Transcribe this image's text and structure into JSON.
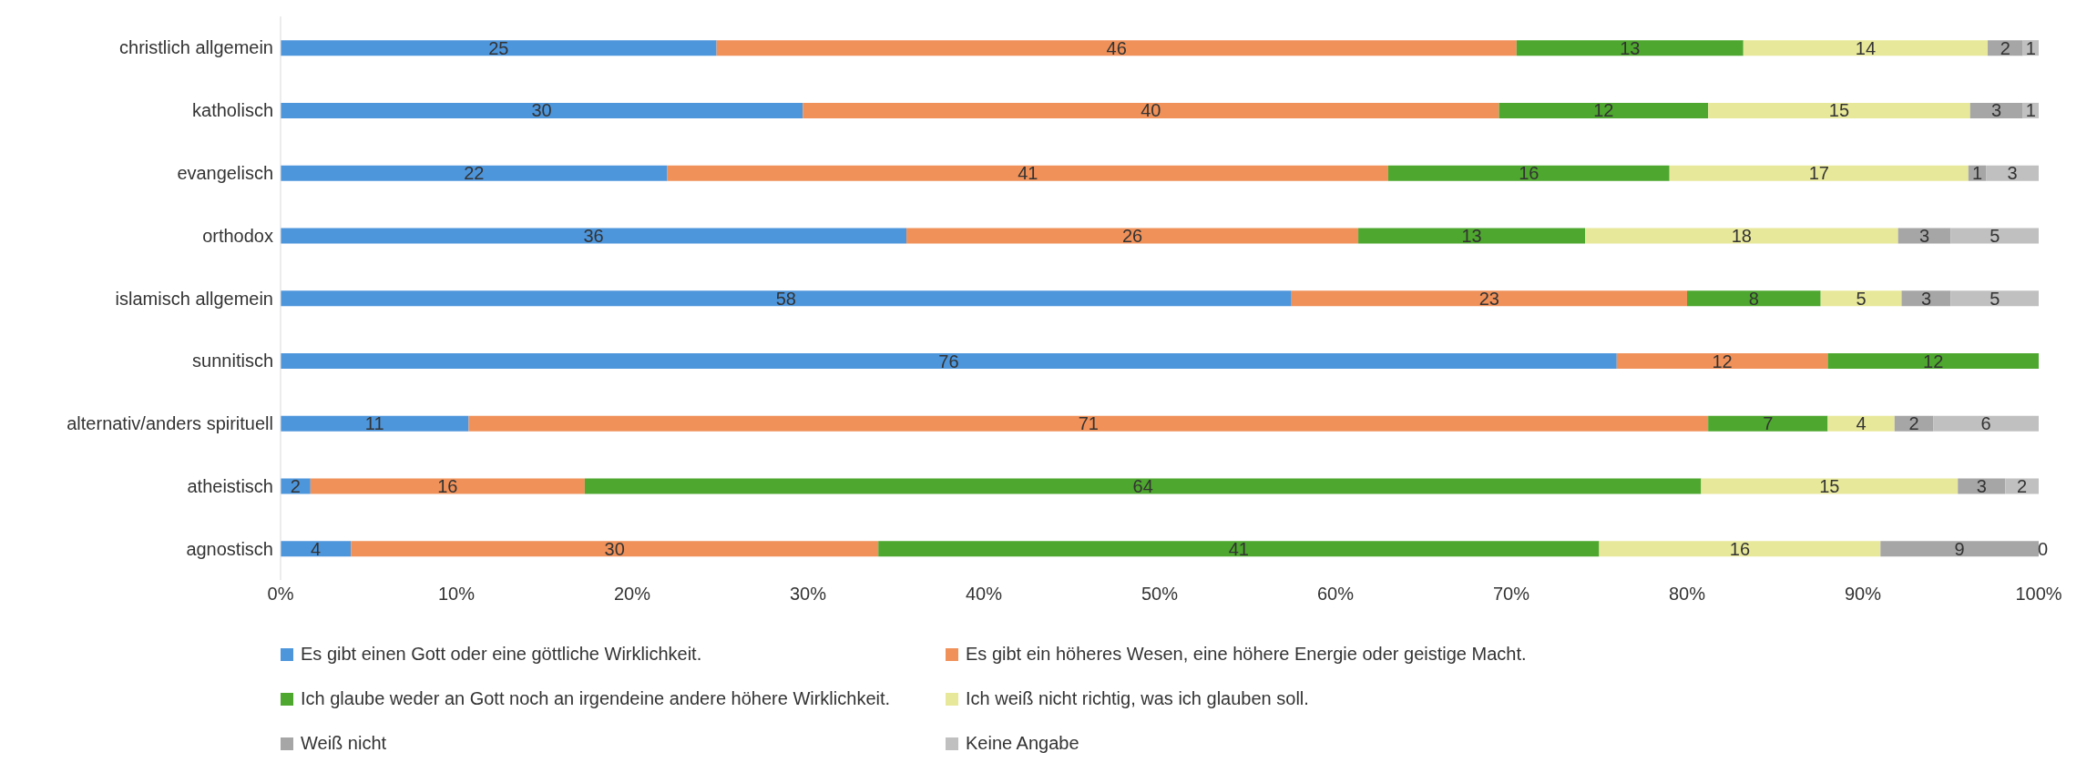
{
  "chart_data": {
    "type": "bar",
    "orientation": "horizontal",
    "stacked": true,
    "categories": [
      "christlich allgemein",
      "katholisch",
      "evangelisch",
      "orthodox",
      "islamisch allgemein",
      "sunnitisch",
      "alternativ/anders spirituell",
      "atheistisch",
      "agnostisch"
    ],
    "series": [
      {
        "name": "Es gibt einen Gott oder eine göttliche Wirklichkeit.",
        "color": "#4e96dc",
        "values": [
          24.8,
          29.7,
          22,
          35.6,
          57.5,
          76,
          10.7,
          1.7,
          4
        ],
        "value_labels": [
          "25",
          "30",
          "22",
          "36",
          "58",
          "76",
          "11",
          "2",
          "4"
        ]
      },
      {
        "name": "Es gibt ein höheres Wesen, eine höhere Energie oder geistige Macht.",
        "color": "#f0915a",
        "values": [
          45.5,
          39.6,
          41,
          25.7,
          22.5,
          12,
          70.5,
          15.6,
          30
        ],
        "value_labels": [
          "46",
          "40",
          "41",
          "26",
          "23",
          "12",
          "71",
          "16",
          "30"
        ]
      },
      {
        "name": "Ich glaube weder an Gott noch an irgendeine andere höhere Wirklichkeit.",
        "color": "#4ea72e",
        "values": [
          12.9,
          11.9,
          16,
          12.9,
          7.6,
          12,
          6.8,
          63.5,
          41
        ],
        "value_labels": [
          "13",
          "12",
          "16",
          "13",
          "8",
          "12",
          "7",
          "64",
          "41"
        ]
      },
      {
        "name": "Ich weiß nicht richtig, was ich glauben soll.",
        "color": "#e8e89a",
        "values": [
          13.9,
          14.9,
          17,
          17.8,
          4.6,
          null,
          3.8,
          14.6,
          16
        ],
        "value_labels": [
          "14",
          "15",
          "17",
          "18",
          "5",
          null,
          "4",
          "15",
          "16"
        ]
      },
      {
        "name": "Weiß nicht",
        "color": "#a6a6a6",
        "values": [
          2.0,
          3.0,
          1,
          3.0,
          2.8,
          null,
          2.2,
          2.7,
          9
        ],
        "value_labels": [
          "2",
          "3",
          "1",
          "3",
          "3",
          null,
          "2",
          "3",
          "9"
        ]
      },
      {
        "name": "Keine Angabe",
        "color": "#c0c0c0",
        "values": [
          0.9,
          0.9,
          3,
          5.0,
          5.0,
          null,
          6.0,
          1.9,
          0
        ],
        "value_labels": [
          "1",
          "1",
          "3",
          "5",
          "5",
          null,
          "6",
          "2",
          "0"
        ]
      }
    ],
    "xlim": [
      0,
      100
    ],
    "xticks": [
      {
        "value": 0,
        "label": "0%"
      },
      {
        "value": 10,
        "label": "10%"
      },
      {
        "value": 20,
        "label": "20%"
      },
      {
        "value": 30,
        "label": "30%"
      },
      {
        "value": 40,
        "label": "40%"
      },
      {
        "value": 50,
        "label": "50%"
      },
      {
        "value": 60,
        "label": "60%"
      },
      {
        "value": 70,
        "label": "70%"
      },
      {
        "value": 80,
        "label": "80%"
      },
      {
        "value": 90,
        "label": "90%"
      },
      {
        "value": 100,
        "label": "100%"
      }
    ],
    "legend": "bottom"
  }
}
